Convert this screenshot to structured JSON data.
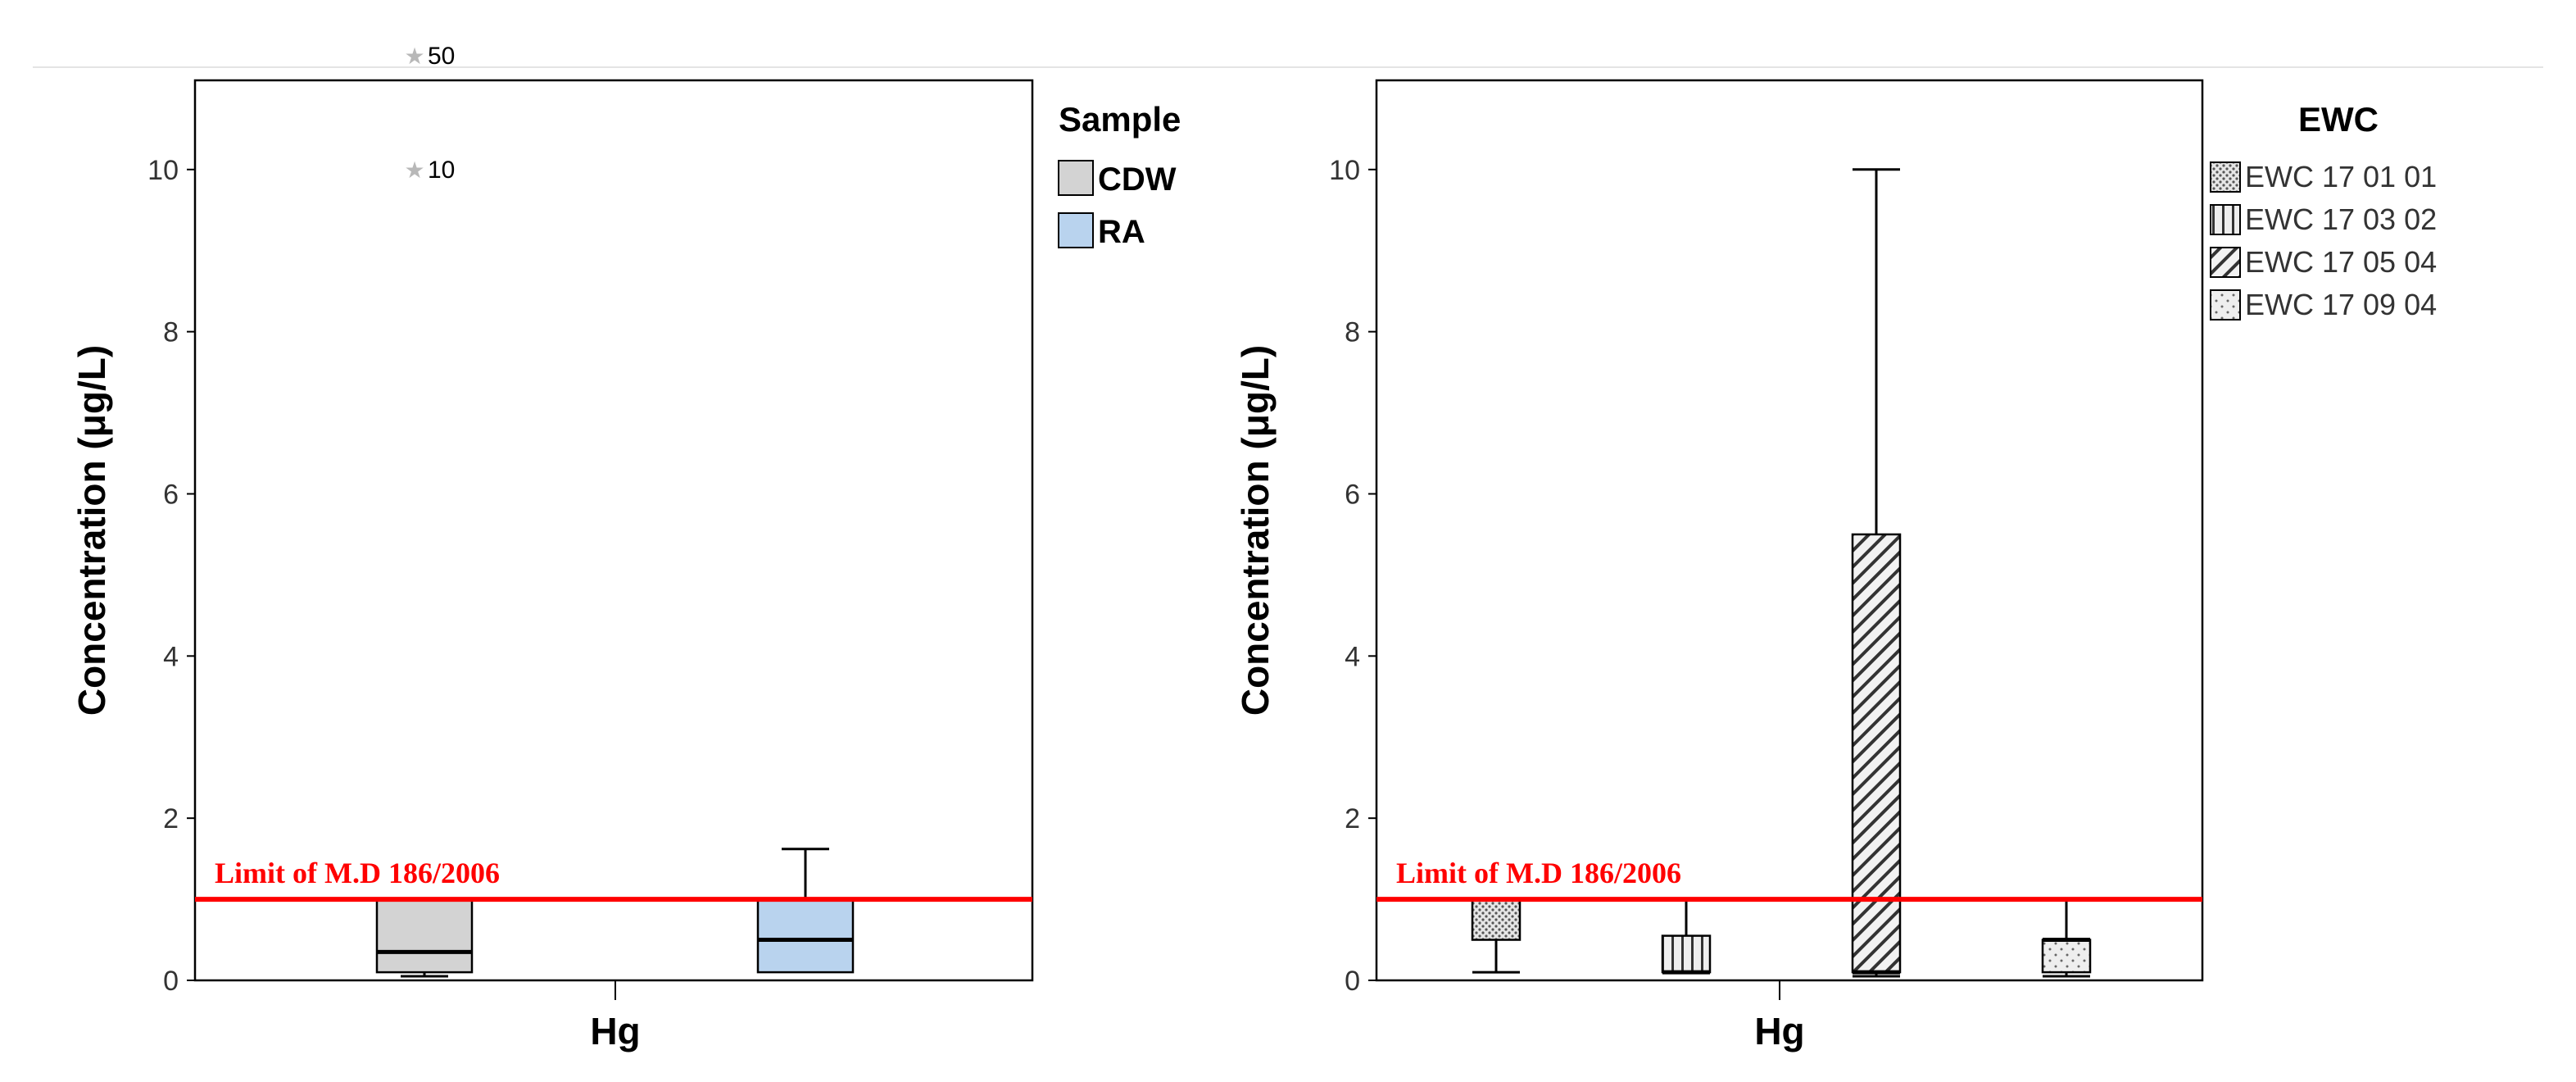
{
  "chart_data": [
    {
      "type": "box",
      "ylabel": "Concentration (μg/L)",
      "xlabel": "Hg",
      "ylim": [
        0,
        11.1
      ],
      "yticks": [
        0,
        2,
        4,
        6,
        8,
        10
      ],
      "grid": false,
      "legend": {
        "title": "Sample",
        "position": "right",
        "entries": [
          {
            "label": "CDW",
            "color": "#d3d3d3",
            "pattern": "solid"
          },
          {
            "label": "RA",
            "color": "#b9d3ee",
            "pattern": "solid"
          }
        ]
      },
      "threshold": {
        "value": 1.0,
        "label": "Limit of M.D 186/2006",
        "color": "#ff0000"
      },
      "series": [
        {
          "name": "CDW",
          "min": 0.05,
          "q1": 0.1,
          "median": 0.35,
          "q3": 1.0,
          "max": 1.0,
          "outliers": [
            {
              "y": 10,
              "label": "10"
            },
            {
              "y": 11.5,
              "label": "50"
            }
          ]
        },
        {
          "name": "RA",
          "min": 0.1,
          "q1": 0.1,
          "median": 0.5,
          "q3": 1.0,
          "max": 1.62,
          "outliers": []
        }
      ]
    },
    {
      "type": "box",
      "ylabel": "Concentration (μg/L)",
      "xlabel": "Hg",
      "ylim": [
        0,
        11.1
      ],
      "yticks": [
        0,
        2,
        4,
        6,
        8,
        10
      ],
      "grid": false,
      "legend": {
        "title": "EWC",
        "position": "right",
        "entries": [
          {
            "label": "EWC 17 01 01",
            "pattern": "dots-dense"
          },
          {
            "label": "EWC 17 03 02",
            "pattern": "vertical-lines"
          },
          {
            "label": "EWC 17 05 04",
            "pattern": "diagonal-lines"
          },
          {
            "label": "EWC 17 09 04",
            "pattern": "dots-sparse"
          }
        ]
      },
      "threshold": {
        "value": 1.0,
        "label": "Limit of M.D 186/2006",
        "color": "#ff0000"
      },
      "series": [
        {
          "name": "EWC 17 01 01",
          "min": 0.1,
          "q1": 0.5,
          "median": 1.0,
          "q3": 1.0,
          "max": 1.0,
          "outliers": []
        },
        {
          "name": "EWC 17 03 02",
          "min": 0.1,
          "q1": 0.1,
          "median": 0.1,
          "q3": 0.55,
          "max": 1.0,
          "outliers": []
        },
        {
          "name": "EWC 17 05 04",
          "min": 0.05,
          "q1": 0.1,
          "median": 0.1,
          "q3": 5.5,
          "max": 10.0,
          "outliers": []
        },
        {
          "name": "EWC 17 09 04",
          "min": 0.05,
          "q1": 0.1,
          "median": 0.5,
          "q3": 0.5,
          "max": 1.0,
          "outliers": []
        }
      ]
    }
  ]
}
